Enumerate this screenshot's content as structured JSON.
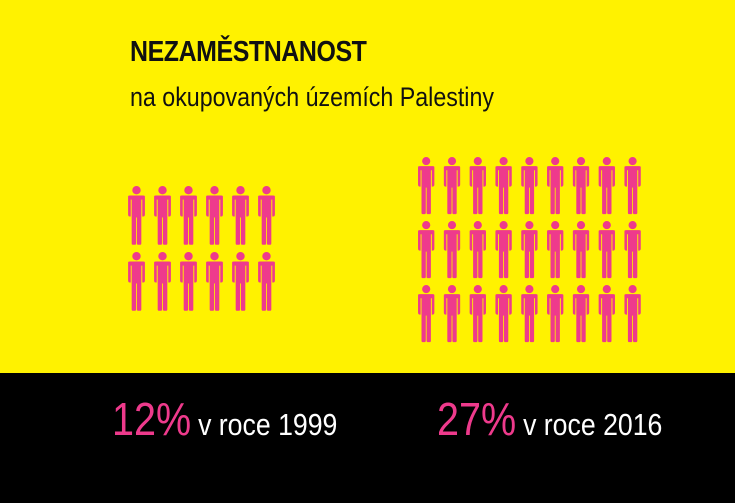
{
  "title": "NEZAMĚSTNANOST",
  "subtitle": "na okupovaných územích Palestiny",
  "colors": {
    "background_top": "#fff200",
    "background_bottom": "#000000",
    "accent": "#ee3a8c",
    "text_dark": "#111111",
    "text_light": "#ffffff"
  },
  "icon": "person-icon",
  "stats": [
    {
      "percent": "12%",
      "label": "v roce 1999",
      "value": 12,
      "person_count": 12
    },
    {
      "percent": "27%",
      "label": "v roce 2016",
      "value": 27,
      "person_count": 27
    }
  ]
}
